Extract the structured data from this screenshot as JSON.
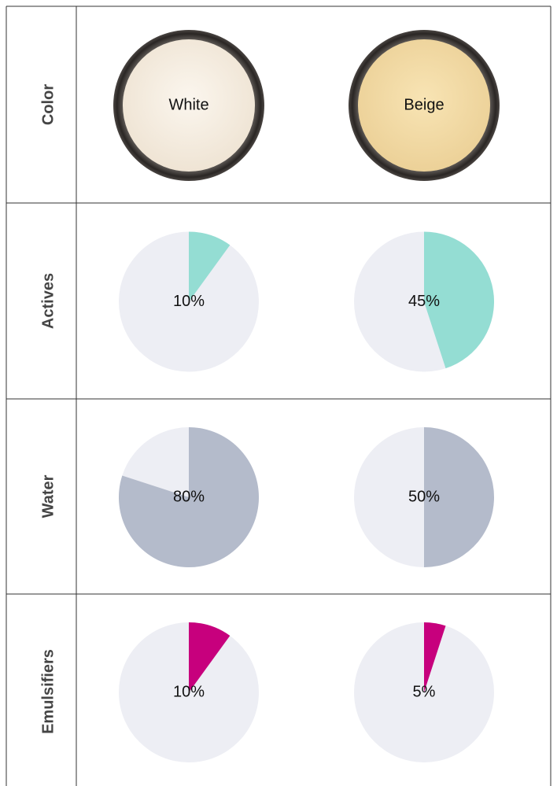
{
  "table": {
    "pie_background": "#edeef4",
    "rows": [
      {
        "label": "Color",
        "cells": [
          "White",
          "Beige"
        ]
      },
      {
        "label": "Actives",
        "color": "#94ddd3",
        "values": [
          10,
          45
        ],
        "value_labels": [
          "10%",
          "45%"
        ]
      },
      {
        "label": "Water",
        "color": "#b4bbcb",
        "values": [
          80,
          50
        ],
        "value_labels": [
          "80%",
          "50%"
        ]
      },
      {
        "label": "Emulsifiers",
        "color": "#c7007d",
        "values": [
          10,
          5
        ],
        "value_labels": [
          "10%",
          "5%"
        ]
      }
    ]
  }
}
